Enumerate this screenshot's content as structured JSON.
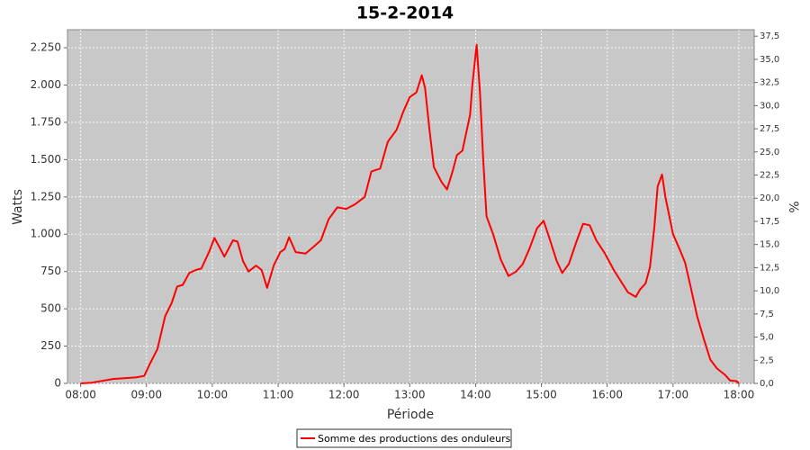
{
  "chart_data": {
    "type": "line",
    "title": "15-2-2014",
    "x_label": "Période",
    "y_label": "Watts",
    "y2_label": "%",
    "x": [
      "08:00",
      "08:10",
      "08:30",
      "08:50",
      "08:58",
      "09:03",
      "09:10",
      "09:17",
      "09:23",
      "09:28",
      "09:33",
      "09:39",
      "09:45",
      "09:50",
      "09:57",
      "10:02",
      "10:06",
      "10:11",
      "10:19",
      "10:23",
      "10:28",
      "10:33",
      "10:40",
      "10:45",
      "10:50",
      "10:56",
      "11:02",
      "11:06",
      "11:10",
      "11:16",
      "11:25",
      "11:33",
      "11:39",
      "11:46",
      "11:54",
      "12:02",
      "12:10",
      "12:19",
      "12:25",
      "12:33",
      "12:40",
      "12:48",
      "12:54",
      "13:00",
      "13:06",
      "13:11",
      "13:14",
      "13:18",
      "13:22",
      "13:29",
      "13:34",
      "13:39",
      "13:43",
      "13:48",
      "13:55",
      "13:57",
      "14:01",
      "14:04",
      "14:07",
      "14:10",
      "14:16",
      "14:23",
      "14:30",
      "14:37",
      "14:43",
      "14:49",
      "14:56",
      "15:02",
      "15:07",
      "15:14",
      "15:19",
      "15:25",
      "15:32",
      "15:38",
      "15:44",
      "15:50",
      "15:58",
      "16:06",
      "16:12",
      "16:19",
      "16:26",
      "16:30",
      "16:35",
      "16:39",
      "16:43",
      "16:46",
      "16:50",
      "16:53",
      "17:00",
      "17:06",
      "17:11",
      "17:16",
      "17:22",
      "17:28",
      "17:34",
      "17:40",
      "17:47",
      "17:52",
      "17:58",
      "18:00"
    ],
    "series": [
      {
        "name": "Somme des productions des onduleurs",
        "color": "#ff0000",
        "values": [
          0,
          5,
          30,
          40,
          50,
          130,
          230,
          450,
          540,
          650,
          660,
          740,
          760,
          770,
          880,
          975,
          920,
          850,
          960,
          950,
          820,
          750,
          790,
          760,
          640,
          790,
          880,
          900,
          980,
          880,
          870,
          920,
          960,
          1100,
          1180,
          1170,
          1200,
          1250,
          1420,
          1440,
          1620,
          1700,
          1820,
          1920,
          1950,
          2065,
          1980,
          1700,
          1450,
          1350,
          1300,
          1420,
          1530,
          1560,
          1800,
          2000,
          2270,
          1950,
          1500,
          1120,
          1000,
          830,
          720,
          750,
          800,
          900,
          1040,
          1090,
          980,
          820,
          740,
          800,
          950,
          1070,
          1060,
          960,
          870,
          760,
          690,
          610,
          580,
          630,
          670,
          780,
          1050,
          1320,
          1400,
          1250,
          1000,
          900,
          810,
          650,
          450,
          300,
          160,
          100,
          60,
          20,
          15,
          0
        ]
      }
    ],
    "xlim": [
      "07:48",
      "18:14"
    ],
    "xticks": [
      "08:00",
      "09:00",
      "10:00",
      "11:00",
      "12:00",
      "13:00",
      "14:00",
      "15:00",
      "16:00",
      "17:00",
      "18:00"
    ],
    "ylim": [
      0,
      2371
    ],
    "yticks": [
      0,
      250,
      500,
      750,
      {
        "value": 1000,
        "label": "1.000"
      },
      {
        "value": 1250,
        "label": "1.250"
      },
      {
        "value": 1500,
        "label": "1.500"
      },
      {
        "value": 1750,
        "label": "1.750"
      },
      {
        "value": 2000,
        "label": "2.000"
      },
      {
        "value": 2250,
        "label": "2.250"
      }
    ],
    "y2lim": [
      0,
      38.2
    ],
    "y2ticks": [
      {
        "value": 0,
        "label": "0,0"
      },
      {
        "value": 2.5,
        "label": "2,5"
      },
      {
        "value": 5,
        "label": "5,0"
      },
      {
        "value": 7.5,
        "label": "7,5"
      },
      {
        "value": 10,
        "label": "10,0"
      },
      {
        "value": 12.5,
        "label": "12,5"
      },
      {
        "value": 15,
        "label": "15,0"
      },
      {
        "value": 17.5,
        "label": "17,5"
      },
      {
        "value": 20,
        "label": "20,0"
      },
      {
        "value": 22.5,
        "label": "22,5"
      },
      {
        "value": 25,
        "label": "25,0"
      },
      {
        "value": 27.5,
        "label": "27,5"
      },
      {
        "value": 30,
        "label": "30,0"
      },
      {
        "value": 32.5,
        "label": "32,5"
      },
      {
        "value": 35,
        "label": "35,0"
      },
      {
        "value": 37.5,
        "label": "37,5"
      }
    ],
    "grid": true,
    "legend": "bottom"
  }
}
